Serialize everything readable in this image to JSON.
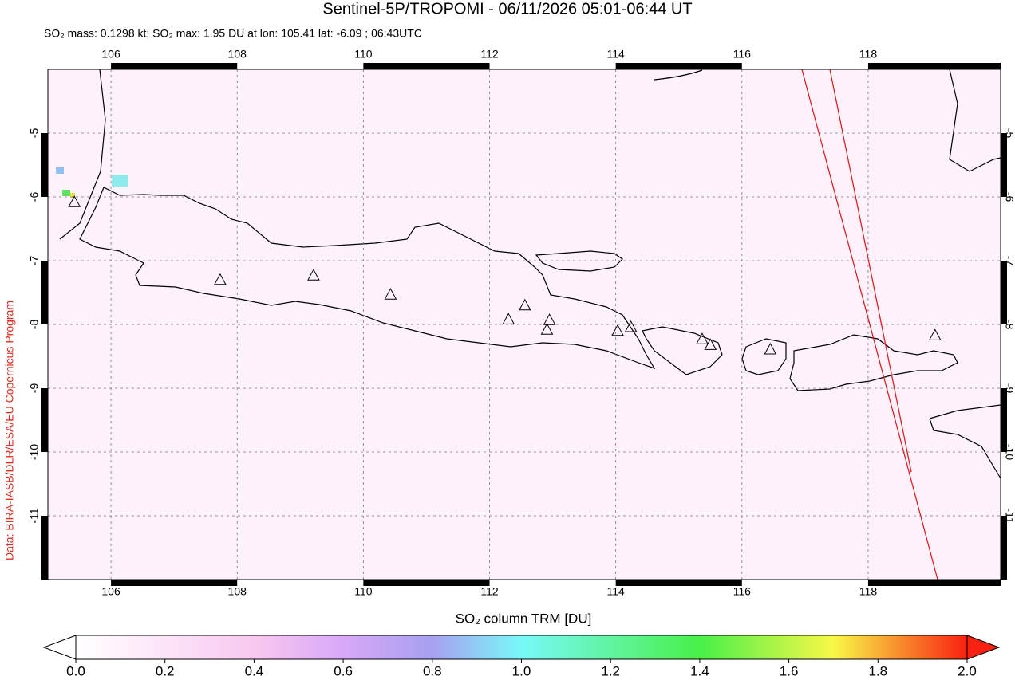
{
  "chart_data": {
    "type": "map",
    "title": "Sentinel-5P/TROPOMI - 06/11/2026 05:01-06:44 UT",
    "subtitle": "SO₂ mass: 0.1298 kt; SO₂ max: 1.95 DU at lon: 105.41 lat: -6.09 ; 06:43UTC",
    "credit": "Data: BIRA-IASB/DLR/ESA/EU Copernicus Program",
    "xlim": [
      105.0,
      120.1
    ],
    "ylim": [
      -12.0,
      -4.0
    ],
    "xticks": [
      106,
      108,
      110,
      112,
      114,
      116,
      118
    ],
    "yticks": [
      -5,
      -6,
      -7,
      -8,
      -9,
      -10,
      -11
    ],
    "grid": true,
    "volcanoes": {
      "color": "#000000",
      "lon": [
        105.42,
        107.73,
        109.21,
        110.43,
        112.3,
        112.56,
        112.95,
        112.91,
        114.03,
        114.24,
        115.37,
        115.5,
        116.45,
        119.06
      ],
      "lat": [
        -6.09,
        -7.31,
        -7.24,
        -7.54,
        -7.93,
        -7.71,
        -7.94,
        -8.09,
        -8.11,
        -8.05,
        -8.24,
        -8.33,
        -8.4,
        -8.18
      ]
    },
    "colorbar": {
      "label": "SO₂ column TRM [DU]",
      "lim": [
        0,
        2
      ],
      "ticks": [
        {
          "value": 0,
          "label": "0.0"
        },
        {
          "value": 0.2,
          "label": "0.2"
        },
        {
          "value": 0.4,
          "label": "0.4"
        },
        {
          "value": 0.6,
          "label": "0.6"
        },
        {
          "value": 0.8,
          "label": "0.8"
        },
        {
          "value": 1,
          "label": "1.0"
        },
        {
          "value": 1.2,
          "label": "1.2"
        },
        {
          "value": 1.4,
          "label": "1.4"
        },
        {
          "value": 1.6,
          "label": "1.6"
        },
        {
          "value": 1.8,
          "label": "1.8"
        },
        {
          "value": 2,
          "label": "2.0"
        }
      ]
    }
  }
}
